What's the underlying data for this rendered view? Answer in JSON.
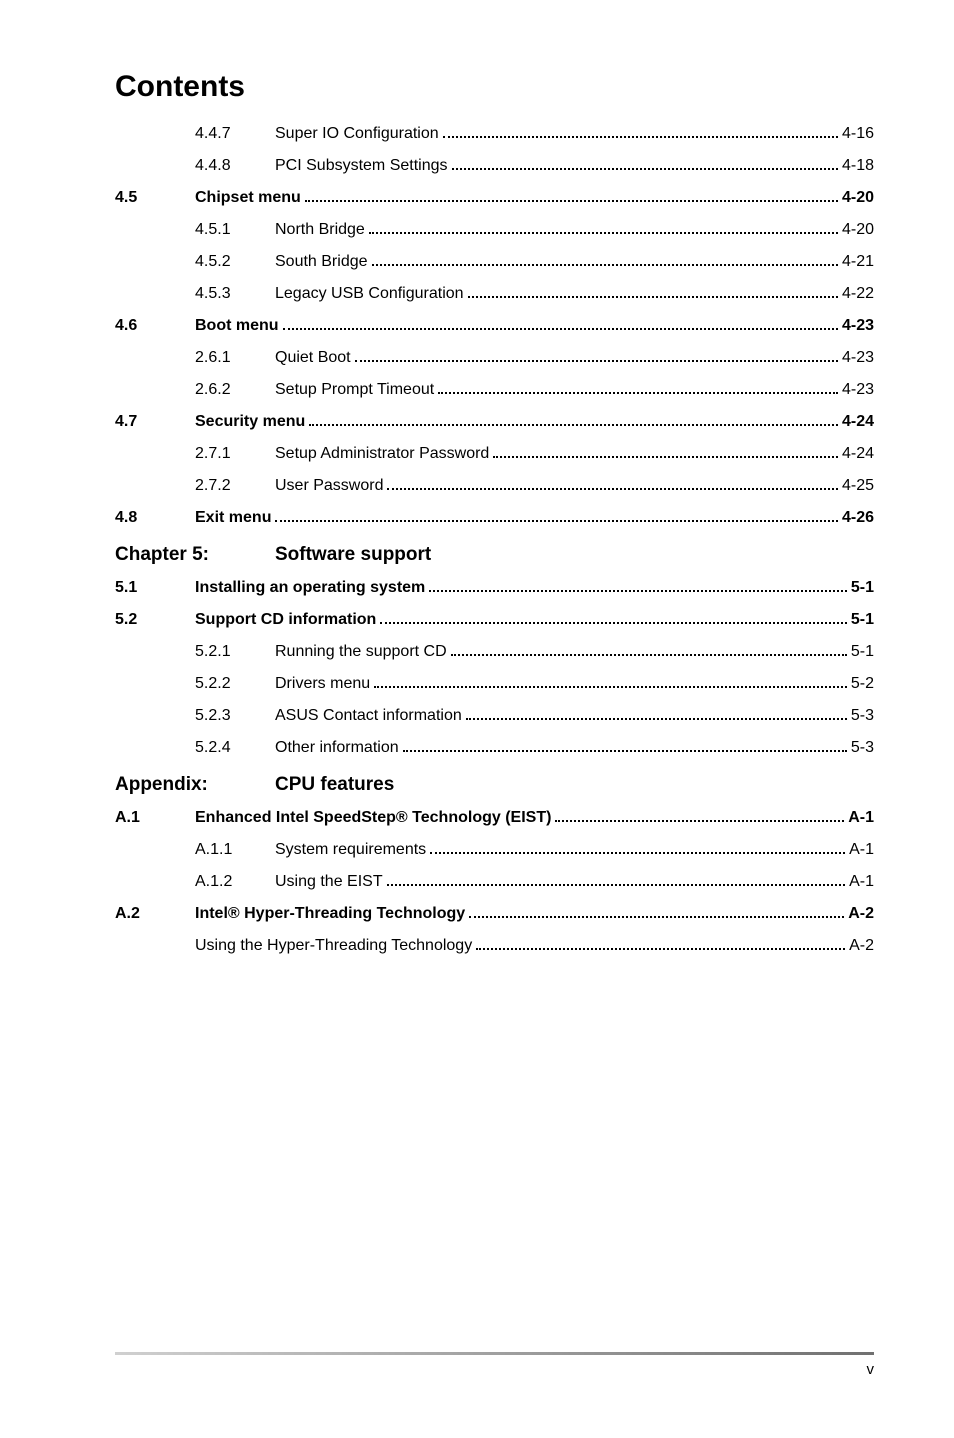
{
  "page": {
    "title": "Contents",
    "footer_page": "v"
  },
  "toc": {
    "rows": [
      {
        "type": "sub",
        "num": "4.4.7",
        "label": "Super IO Configuration",
        "page": "4-16"
      },
      {
        "type": "sub",
        "num": "4.4.8",
        "label": "PCI Subsystem Settings",
        "page": "4-18"
      },
      {
        "type": "section",
        "num": "4.5",
        "label": "Chipset menu",
        "page": "4-20"
      },
      {
        "type": "sub",
        "num": "4.5.1",
        "label": "North Bridge",
        "page": "4-20"
      },
      {
        "type": "sub",
        "num": "4.5.2",
        "label": "South Bridge",
        "page": "4-21"
      },
      {
        "type": "sub",
        "num": "4.5.3",
        "label": "Legacy USB Configuration",
        "page": "4-22"
      },
      {
        "type": "section",
        "num": "4.6",
        "label": "Boot menu",
        "page": "4-23"
      },
      {
        "type": "sub",
        "num": "2.6.1",
        "label": "Quiet Boot",
        "page": "4-23"
      },
      {
        "type": "sub",
        "num": "2.6.2",
        "label": "Setup Prompt Timeout",
        "page": "4-23"
      },
      {
        "type": "section",
        "num": "4.7",
        "label": "Security menu",
        "page": "4-24"
      },
      {
        "type": "sub",
        "num": "2.7.1",
        "label": "Setup Administrator Password",
        "page": "4-24"
      },
      {
        "type": "sub",
        "num": "2.7.2",
        "label": "User Password",
        "page": "4-25"
      },
      {
        "type": "section",
        "num": "4.8",
        "label": "Exit menu",
        "page": "4-26"
      },
      {
        "type": "chapter",
        "num": "Chapter 5:",
        "label": "Software support"
      },
      {
        "type": "section",
        "num": "5.1",
        "label": "Installing an operating system",
        "page": "5-1"
      },
      {
        "type": "section",
        "num": "5.2",
        "label": "Support CD information",
        "page": "5-1"
      },
      {
        "type": "sub",
        "num": "5.2.1",
        "label": "Running the support CD",
        "page": "5-1"
      },
      {
        "type": "sub",
        "num": "5.2.2",
        "label": "Drivers menu",
        "page": "5-2"
      },
      {
        "type": "sub",
        "num": "5.2.3",
        "label": "ASUS Contact information",
        "page": "5-3"
      },
      {
        "type": "sub",
        "num": "5.2.4",
        "label": "Other information",
        "page": "5-3"
      },
      {
        "type": "chapter",
        "num": "Appendix:",
        "label": "CPU features"
      },
      {
        "type": "section",
        "num": "A.1",
        "label": "Enhanced Intel SpeedStep® Technology (EIST)",
        "page": "A-1"
      },
      {
        "type": "sub",
        "num": "A.1.1",
        "label": "System requirements",
        "page": "A-1"
      },
      {
        "type": "sub",
        "num": "A.1.2",
        "label": "Using the EIST",
        "page": "A-1"
      },
      {
        "type": "section",
        "num": "A.2",
        "label": "Intel® Hyper-Threading Technology",
        "page": "A-2"
      },
      {
        "type": "plain",
        "label": "Using the Hyper-Threading Technology",
        "page": "A-2"
      }
    ]
  },
  "style": {
    "title_fontsize": 30,
    "row_fontsize": 16,
    "chapter_fontsize": 19,
    "text_color": "#000000",
    "background_color": "#ffffff",
    "dot_color": "#000000",
    "footer_gradient_start": "#d0d0d0",
    "footer_gradient_end": "#707070"
  }
}
